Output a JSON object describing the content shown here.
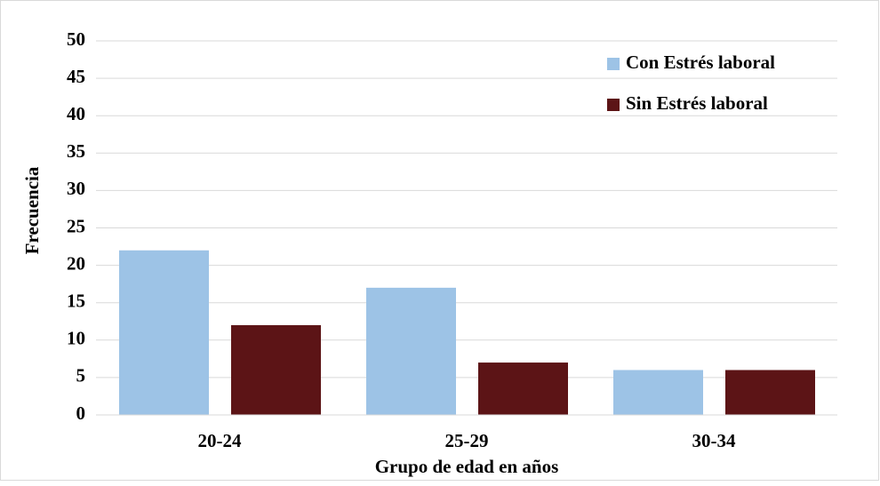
{
  "chart_data": {
    "type": "bar",
    "categories": [
      "20-24",
      "25-29",
      "30-34"
    ],
    "series": [
      {
        "name": "Con Estrés laboral",
        "color": "#9dc3e6",
        "values": [
          22,
          17,
          6
        ]
      },
      {
        "name": "Sin Estrés laboral",
        "color": "#5c1416",
        "values": [
          12,
          7,
          6
        ]
      }
    ],
    "xlabel": "Grupo de edad en años",
    "ylabel": "Frecuencia",
    "ylim": [
      0,
      50
    ],
    "yticks": [
      0,
      5,
      10,
      15,
      20,
      25,
      30,
      35,
      40,
      45,
      50
    ],
    "grid": true,
    "legend": "upper right"
  }
}
